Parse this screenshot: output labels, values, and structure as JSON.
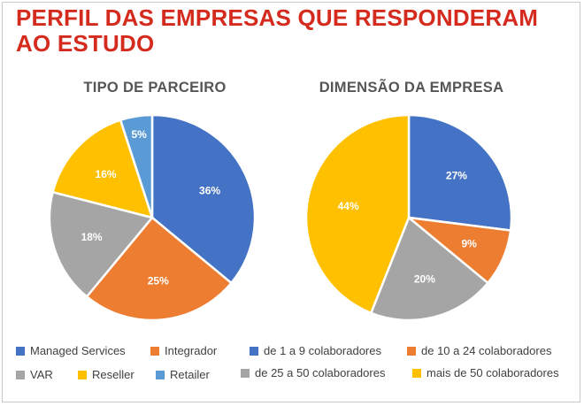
{
  "title": "PERFIL DAS EMPRESAS QUE RESPONDERAM AO ESTUDO",
  "chart_data": [
    {
      "type": "pie",
      "title": "TIPO DE PARCEIRO",
      "slices": [
        {
          "label": "Managed Services",
          "value": 36,
          "display": "36%",
          "color": "#4472c4"
        },
        {
          "label": "Integrador",
          "value": 25,
          "display": "25%",
          "color": "#ed7d31"
        },
        {
          "label": "VAR",
          "value": 18,
          "display": "18%",
          "color": "#a5a5a5"
        },
        {
          "label": "Reseller",
          "value": 16,
          "display": "16%",
          "color": "#ffc000"
        },
        {
          "label": "Retailer",
          "value": 5,
          "display": "5%",
          "color": "#5b9bd5"
        }
      ]
    },
    {
      "type": "pie",
      "title": "DIMENSÃO DA EMPRESA",
      "slices": [
        {
          "label": "de 1 a 9 colaboradores",
          "value": 27,
          "display": "27%",
          "color": "#4472c4"
        },
        {
          "label": "de 10 a 24 colaboradores",
          "value": 9,
          "display": "9%",
          "color": "#ed7d31"
        },
        {
          "label": "de 25 a 50 colaboradores",
          "value": 20,
          "display": "20%",
          "color": "#a5a5a5"
        },
        {
          "label": "mais de 50 colaboradores",
          "value": 44,
          "display": "44%",
          "color": "#ffc000"
        }
      ]
    }
  ]
}
